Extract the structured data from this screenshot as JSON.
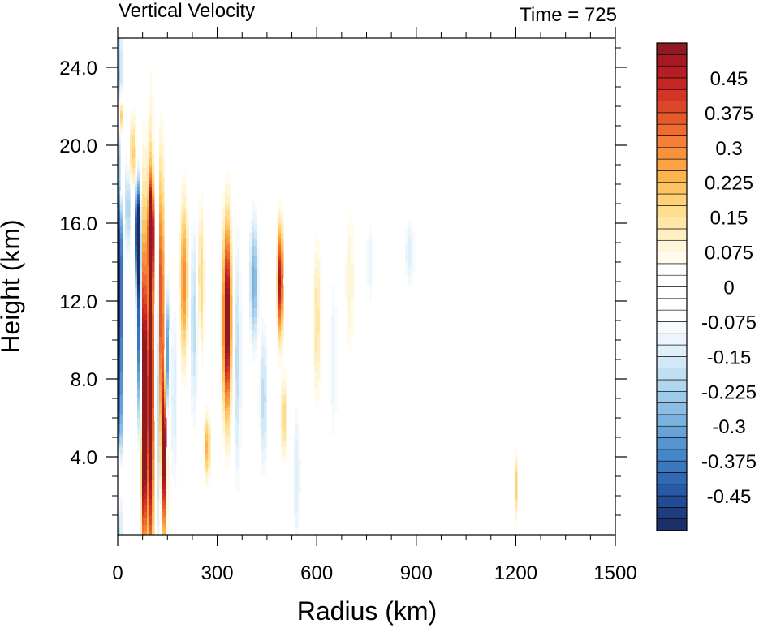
{
  "chart_data": {
    "type": "heatmap",
    "title_left": "Vertical Velocity",
    "title_right": "Time = 725",
    "xlabel": "Radius (km)",
    "ylabel": "Height (km)",
    "xlim": [
      0,
      1500
    ],
    "ylim": [
      0,
      25.5
    ],
    "x_ticks": [
      0,
      300,
      600,
      900,
      1200,
      1500
    ],
    "x_tick_labels": [
      "0",
      "300",
      "600",
      "900",
      "1200",
      "1500"
    ],
    "y_ticks": [
      4,
      8,
      12,
      16,
      20,
      24
    ],
    "y_tick_labels": [
      "4.0",
      "8.0",
      "12.0",
      "16.0",
      "20.0",
      "24.0"
    ],
    "colorbar": {
      "levels": [
        -0.525,
        -0.5,
        -0.475,
        -0.45,
        -0.425,
        -0.4,
        -0.375,
        -0.35,
        -0.325,
        -0.3,
        -0.275,
        -0.25,
        -0.225,
        -0.2,
        -0.175,
        -0.15,
        -0.125,
        -0.1,
        -0.075,
        -0.05,
        -0.025,
        0,
        0.025,
        0.05,
        0.075,
        0.1,
        0.125,
        0.15,
        0.175,
        0.2,
        0.225,
        0.25,
        0.275,
        0.3,
        0.325,
        0.35,
        0.375,
        0.4,
        0.425,
        0.45,
        0.475,
        0.5,
        0.525
      ],
      "tick_values": [
        -0.45,
        -0.375,
        -0.3,
        -0.225,
        -0.15,
        -0.075,
        0,
        0.075,
        0.15,
        0.225,
        0.3,
        0.375,
        0.45
      ],
      "tick_labels": [
        "-0.45",
        "-0.375",
        "-0.3",
        "-0.225",
        "-0.15",
        "-0.075",
        "0",
        "0.075",
        "0.15",
        "0.225",
        "0.3",
        "0.375",
        "0.45"
      ],
      "colors": [
        "#1b2f66",
        "#1f3c7e",
        "#234b93",
        "#2a5aa6",
        "#3068b4",
        "#3a77bf",
        "#4786c8",
        "#5795d0",
        "#68a3d8",
        "#7ab1de",
        "#8cbee4",
        "#9ecae9",
        "#b0d5ee",
        "#c1dff2",
        "#d1e8f6",
        "#e0f0f9",
        "#ecf5fb",
        "#f5fafd",
        "#ffffff",
        "#ffffff",
        "#ffffff",
        "#ffffff",
        "#ffffff",
        "#fffbed",
        "#fff5d8",
        "#ffefc2",
        "#ffe7a8",
        "#ffdd8e",
        "#fed277",
        "#fdc462",
        "#fcb44f",
        "#fba343",
        "#f8913b",
        "#f47f35",
        "#ee6c30",
        "#e6592c",
        "#dc4629",
        "#d23527",
        "#c52726",
        "#b71d24",
        "#a51a22",
        "#8f1a1f"
      ]
    },
    "features": [
      {
        "x": 6,
        "y": 12.5,
        "sx": 6,
        "sy": 9,
        "v": -0.55
      },
      {
        "x": 10,
        "y": 18.5,
        "sx": 6,
        "sy": 1.5,
        "v": 0.3
      },
      {
        "x": 8,
        "y": 21.5,
        "sx": 5,
        "sy": 0.8,
        "v": 0.45
      },
      {
        "x": 5,
        "y": 3,
        "sx": 5,
        "sy": 1.2,
        "v": 0.35
      },
      {
        "x": 30,
        "y": 17,
        "sx": 6,
        "sy": 2,
        "v": -0.25
      },
      {
        "x": 45,
        "y": 19.5,
        "sx": 8,
        "sy": 1.5,
        "v": 0.2
      },
      {
        "x": 60,
        "y": 15.5,
        "sx": 6,
        "sy": 2,
        "v": -0.6
      },
      {
        "x": 65,
        "y": 10,
        "sx": 5,
        "sy": 3.5,
        "v": -0.45
      },
      {
        "x": 80,
        "y": 5,
        "sx": 7,
        "sy": 4.5,
        "v": 0.6
      },
      {
        "x": 80,
        "y": 12,
        "sx": 6,
        "sy": 5,
        "v": 0.3
      },
      {
        "x": 100,
        "y": 8,
        "sx": 6,
        "sy": 7,
        "v": 0.65
      },
      {
        "x": 100,
        "y": 15.5,
        "sx": 5,
        "sy": 1.5,
        "v": 0.6
      },
      {
        "x": 120,
        "y": 9,
        "sx": 5,
        "sy": 7,
        "v": -0.3
      },
      {
        "x": 130,
        "y": 12,
        "sx": 6,
        "sy": 5,
        "v": 0.45
      },
      {
        "x": 140,
        "y": 4,
        "sx": 6,
        "sy": 3,
        "v": 0.6
      },
      {
        "x": 150,
        "y": 9,
        "sx": 4,
        "sy": 2.5,
        "v": -0.35
      },
      {
        "x": 170,
        "y": 7,
        "sx": 8,
        "sy": 4,
        "v": -0.15
      },
      {
        "x": 200,
        "y": 13,
        "sx": 9,
        "sy": 3,
        "v": 0.3
      },
      {
        "x": 230,
        "y": 11,
        "sx": 10,
        "sy": 4,
        "v": -0.2
      },
      {
        "x": 250,
        "y": 13,
        "sx": 8,
        "sy": 3,
        "v": 0.2
      },
      {
        "x": 270,
        "y": 4.5,
        "sx": 6,
        "sy": 1.2,
        "v": 0.25
      },
      {
        "x": 330,
        "y": 11,
        "sx": 9,
        "sy": 3.5,
        "v": 0.6
      },
      {
        "x": 360,
        "y": 9,
        "sx": 10,
        "sy": 5,
        "v": -0.2
      },
      {
        "x": 410,
        "y": 13,
        "sx": 9,
        "sy": 2.5,
        "v": -0.3
      },
      {
        "x": 440,
        "y": 7,
        "sx": 8,
        "sy": 3,
        "v": -0.2
      },
      {
        "x": 490,
        "y": 13,
        "sx": 6,
        "sy": 2,
        "v": 0.5
      },
      {
        "x": 500,
        "y": 6,
        "sx": 5,
        "sy": 1.5,
        "v": 0.2
      },
      {
        "x": 540,
        "y": 3,
        "sx": 8,
        "sy": 3,
        "v": -0.15
      },
      {
        "x": 600,
        "y": 11,
        "sx": 10,
        "sy": 3,
        "v": 0.15
      },
      {
        "x": 650,
        "y": 9,
        "sx": 10,
        "sy": 4,
        "v": -0.12
      },
      {
        "x": 700,
        "y": 13,
        "sx": 12,
        "sy": 3,
        "v": 0.1
      },
      {
        "x": 760,
        "y": 14,
        "sx": 10,
        "sy": 2,
        "v": -0.12
      },
      {
        "x": 880,
        "y": 14.5,
        "sx": 12,
        "sy": 1.5,
        "v": -0.15
      },
      {
        "x": 1200,
        "y": 2.5,
        "sx": 4,
        "sy": 1.2,
        "v": 0.2
      }
    ]
  }
}
